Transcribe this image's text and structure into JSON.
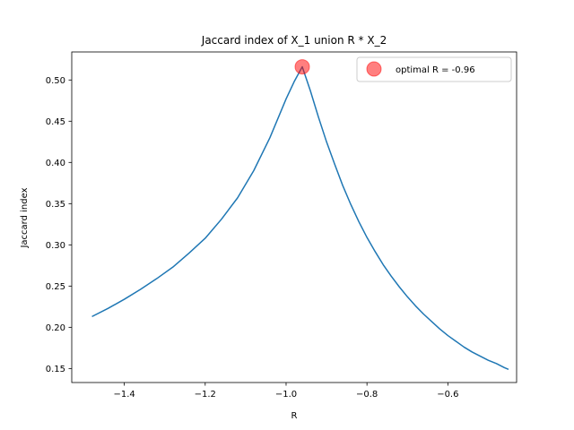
{
  "chart_data": {
    "type": "line",
    "title": "Jaccard index of X_1 union R * X_2",
    "xlabel": "R",
    "ylabel": "Jaccard index",
    "xlim": [
      -1.53,
      -0.43
    ],
    "ylim": [
      0.133,
      0.534
    ],
    "xticks": [
      -1.4,
      -1.2,
      -1.0,
      -0.8,
      -0.6
    ],
    "xtick_labels": [
      "−1.4",
      "−1.2",
      "−1.0",
      "−0.8",
      "−0.6"
    ],
    "yticks": [
      0.15,
      0.2,
      0.25,
      0.3,
      0.35,
      0.4,
      0.45,
      0.5
    ],
    "ytick_labels": [
      "0.15",
      "0.20",
      "0.25",
      "0.30",
      "0.35",
      "0.40",
      "0.45",
      "0.50"
    ],
    "grid": false,
    "legend_position": "top-right",
    "series": [
      {
        "color": "#1f77b4",
        "x": [
          -1.48,
          -1.44,
          -1.4,
          -1.36,
          -1.32,
          -1.28,
          -1.24,
          -1.2,
          -1.16,
          -1.12,
          -1.08,
          -1.04,
          -1.0,
          -0.98,
          -0.96,
          -0.94,
          -0.92,
          -0.9,
          -0.88,
          -0.86,
          -0.84,
          -0.82,
          -0.8,
          -0.78,
          -0.76,
          -0.74,
          -0.72,
          -0.7,
          -0.68,
          -0.66,
          -0.64,
          -0.62,
          -0.6,
          -0.58,
          -0.56,
          -0.54,
          -0.52,
          -0.5,
          -0.48,
          -0.46,
          -0.45
        ],
        "y": [
          0.213,
          0.223,
          0.234,
          0.246,
          0.259,
          0.273,
          0.29,
          0.308,
          0.331,
          0.357,
          0.39,
          0.43,
          0.477,
          0.498,
          0.516,
          0.487,
          0.455,
          0.425,
          0.398,
          0.372,
          0.349,
          0.328,
          0.309,
          0.292,
          0.276,
          0.262,
          0.249,
          0.237,
          0.226,
          0.216,
          0.207,
          0.198,
          0.19,
          0.183,
          0.176,
          0.17,
          0.165,
          0.16,
          0.156,
          0.151,
          0.149
        ]
      }
    ],
    "optimum": {
      "label": "optimal R = -0.96",
      "x": -0.96,
      "y": 0.516,
      "color": "#ff0000"
    }
  }
}
